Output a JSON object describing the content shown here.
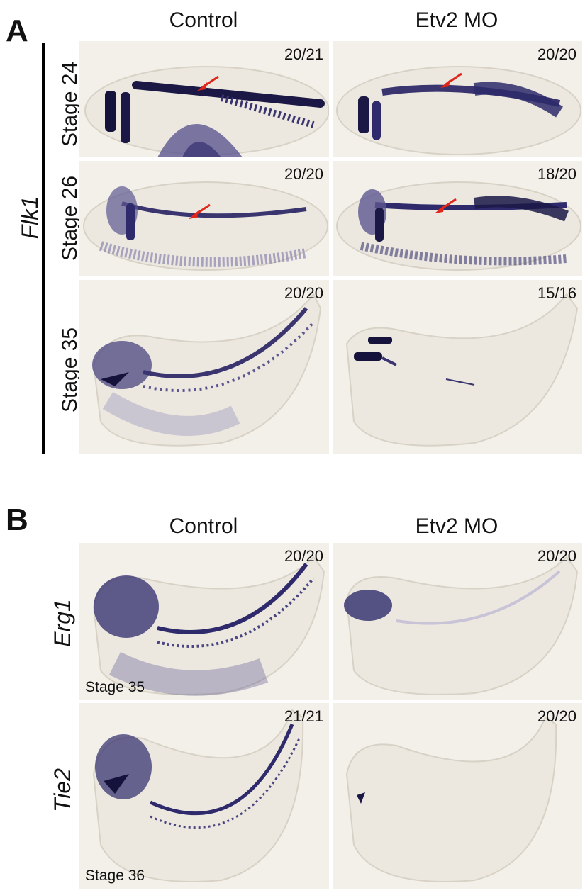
{
  "panelA": {
    "letter": "A",
    "columns": [
      "Control",
      "Etv2 MO"
    ],
    "gene": "Flk1",
    "rows": [
      {
        "stage": "Stage 24",
        "counts": [
          "20/21",
          "20/20"
        ]
      },
      {
        "stage": "Stage 26",
        "counts": [
          "20/20",
          "18/20"
        ]
      },
      {
        "stage": "Stage 35",
        "counts": [
          "20/20",
          "15/16"
        ]
      }
    ]
  },
  "panelB": {
    "letter": "B",
    "columns": [
      "Control",
      "Etv2 MO"
    ],
    "rows": [
      {
        "gene": "Erg1",
        "stage_tag": "Stage 35",
        "counts": [
          "20/20",
          "20/20"
        ]
      },
      {
        "gene": "Tie2",
        "stage_tag": "Stage 36",
        "counts": [
          "21/21",
          "20/20"
        ]
      }
    ]
  },
  "colors": {
    "stain": "#2e2a6b",
    "arrow": "#e0261b",
    "background": "#f3f0ea"
  }
}
